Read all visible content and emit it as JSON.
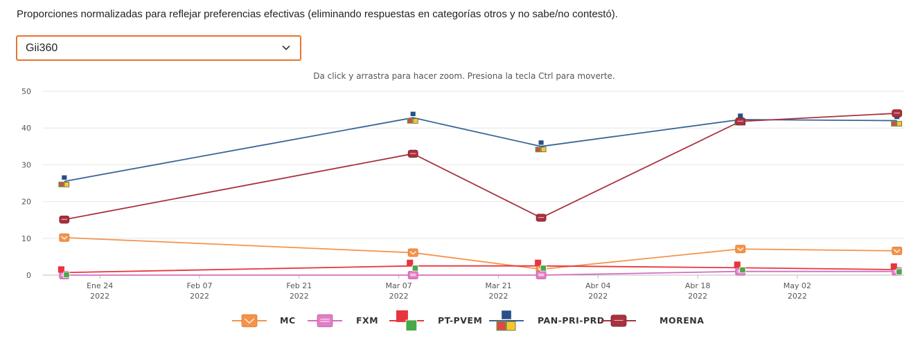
{
  "note": "Proporciones normalizadas para reflejar preferencias efectivas (eliminando respuestas en categorías otros y no sabe/no contestó).",
  "selector": {
    "value": "Gii360"
  },
  "chart_data": {
    "type": "line",
    "subtitle": "Da click y arrastra para hacer zoom. Presiona la tecla Ctrl para moverte.",
    "x": [
      "2022-01-19",
      "2022-03-09",
      "2022-03-27",
      "2022-04-24",
      "2022-05-16"
    ],
    "x_ticks": [
      {
        "date": "2022-01-24",
        "label": "Ene 24",
        "year": "2022"
      },
      {
        "date": "2022-02-07",
        "label": "Feb 07",
        "year": "2022"
      },
      {
        "date": "2022-02-21",
        "label": "Feb 21",
        "year": "2022"
      },
      {
        "date": "2022-03-07",
        "label": "Mar 07",
        "year": "2022"
      },
      {
        "date": "2022-03-21",
        "label": "Mar 21",
        "year": "2022"
      },
      {
        "date": "2022-04-04",
        "label": "Abr 04",
        "year": "2022"
      },
      {
        "date": "2022-04-18",
        "label": "Abr 18",
        "year": "2022"
      },
      {
        "date": "2022-05-02",
        "label": "May 02",
        "year": "2022"
      }
    ],
    "ylim": [
      0,
      50
    ],
    "y_ticks": [
      0,
      10,
      20,
      30,
      40,
      50
    ],
    "grid": true,
    "legend_position": "bottom",
    "series": [
      {
        "name": "MC",
        "color": "#f4934a",
        "marker": "mc",
        "values": [
          10.2,
          6.1,
          1.6,
          7.1,
          6.6
        ]
      },
      {
        "name": "FXM",
        "color": "#d66cc0",
        "marker": "fxm",
        "values": [
          0,
          0,
          0,
          1.0,
          1.0
        ]
      },
      {
        "name": "PT-PVEM",
        "color": "#e8343c",
        "marker": "pt",
        "values": [
          0.7,
          2.5,
          2.5,
          2.0,
          1.5
        ]
      },
      {
        "name": "PAN-PRI-PRD",
        "color": "#3a6496",
        "marker": "pan",
        "values": [
          25.5,
          42.8,
          35.0,
          42.3,
          42.0
        ]
      },
      {
        "name": "MORENA",
        "color": "#a8323e",
        "marker": "morena",
        "values": [
          15.1,
          33.0,
          15.6,
          41.8,
          44.0
        ]
      }
    ]
  }
}
